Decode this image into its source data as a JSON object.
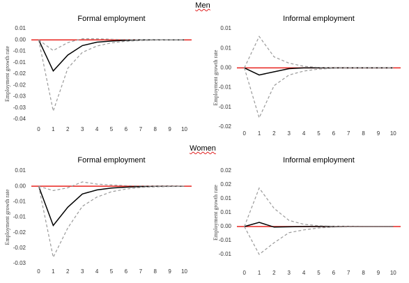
{
  "headings": [
    "Men",
    "Women"
  ],
  "chart_data": [
    {
      "type": "line",
      "title": "Formal employment",
      "y_label": "Employment growth rate",
      "categories": [
        "0",
        "1",
        "2",
        "3",
        "4",
        "5",
        "6",
        "7",
        "8",
        "9",
        "10"
      ],
      "ylim": [
        -0.035,
        0.005
      ],
      "yticks": [
        {
          "value": 0.005,
          "label": "0.01"
        },
        {
          "value": 0,
          "label": "0.00"
        },
        {
          "value": -0.005,
          "label": "-0.01"
        },
        {
          "value": -0.01,
          "label": "-0.01"
        },
        {
          "value": -0.015,
          "label": "-0.02"
        },
        {
          "value": -0.02,
          "label": "-0.02"
        },
        {
          "value": -0.025,
          "label": "-0.03"
        },
        {
          "value": -0.03,
          "label": "-0.03"
        },
        {
          "value": -0.035,
          "label": "-0.04"
        }
      ],
      "reference_line": {
        "value": 0,
        "color": "#e8231e"
      },
      "series": [
        {
          "color": "#000000",
          "style": "solid",
          "values": [
            0,
            -0.0137,
            -0.0067,
            -0.0025,
            -0.001,
            -0.0005,
            -0.0002,
            0,
            0,
            0,
            0
          ]
        },
        {
          "color": "#999999",
          "style": "dashed",
          "values": [
            0,
            -0.0047,
            -0.0012,
            0.0005,
            0.0005,
            0.0003,
            0.0001,
            0,
            0,
            0,
            0
          ]
        },
        {
          "color": "#999999",
          "style": "dashed",
          "values": [
            0,
            -0.0314,
            -0.0125,
            -0.0055,
            -0.0027,
            -0.0013,
            -0.0006,
            -0.0003,
            -0.0001,
            0,
            0
          ]
        }
      ]
    },
    {
      "type": "line",
      "title": "Informal employment",
      "y_label": "Employment growth rate",
      "categories": [
        "0",
        "1",
        "2",
        "3",
        "4",
        "5",
        "6",
        "7",
        "8",
        "9",
        "10"
      ],
      "ylim": [
        -0.015,
        0.01
      ],
      "yticks": [
        {
          "value": 0.01,
          "label": "0.01"
        },
        {
          "value": 0.005,
          "label": "0.01"
        },
        {
          "value": 0,
          "label": "0.00"
        },
        {
          "value": -0.005,
          "label": "-0.01"
        },
        {
          "value": -0.01,
          "label": "-0.01"
        },
        {
          "value": -0.015,
          "label": "-0.02"
        }
      ],
      "reference_line": {
        "value": 0,
        "color": "#e8231e"
      },
      "series": [
        {
          "color": "#000000",
          "style": "solid",
          "values": [
            0,
            -0.0018,
            -0.001,
            -0.0002,
            0,
            0,
            0,
            0,
            0,
            0,
            0
          ]
        },
        {
          "color": "#999999",
          "style": "dashed",
          "values": [
            0,
            0.008,
            0.0028,
            0.0012,
            0.0004,
            0.0001,
            0,
            0,
            0,
            0,
            0
          ]
        },
        {
          "color": "#999999",
          "style": "dashed",
          "values": [
            0,
            -0.0127,
            -0.0045,
            -0.0018,
            -0.0008,
            -0.0003,
            -0.0001,
            0,
            0,
            0,
            0
          ]
        }
      ]
    },
    {
      "type": "line",
      "title": "Formal employment",
      "y_label": "Employment growth rate",
      "categories": [
        "0",
        "1",
        "2",
        "3",
        "4",
        "5",
        "6",
        "7",
        "8",
        "9",
        "10"
      ],
      "ylim": [
        -0.025,
        0.005
      ],
      "yticks": [
        {
          "value": 0.005,
          "label": "0.01"
        },
        {
          "value": 0,
          "label": "0.00"
        },
        {
          "value": -0.005,
          "label": "-0.01"
        },
        {
          "value": -0.01,
          "label": "-0.01"
        },
        {
          "value": -0.015,
          "label": "-0.02"
        },
        {
          "value": -0.02,
          "label": "-0.02"
        },
        {
          "value": -0.025,
          "label": "-0.03"
        }
      ],
      "reference_line": {
        "value": 0,
        "color": "#e8231e"
      },
      "series": [
        {
          "color": "#000000",
          "style": "solid",
          "values": [
            0,
            -0.0127,
            -0.0068,
            -0.0025,
            -0.0012,
            -0.0006,
            -0.0003,
            -0.0001,
            0,
            0,
            0
          ]
        },
        {
          "color": "#999999",
          "style": "dashed",
          "values": [
            0,
            -0.0014,
            -0.0005,
            0.0014,
            0.0007,
            0.0004,
            0.0002,
            0.0001,
            0,
            0,
            0
          ]
        },
        {
          "color": "#999999",
          "style": "dashed",
          "values": [
            0,
            -0.023,
            -0.0135,
            -0.0065,
            -0.0035,
            -0.0018,
            -0.0009,
            -0.0004,
            -0.0002,
            -0.0001,
            0
          ]
        }
      ]
    },
    {
      "type": "line",
      "title": "Informal employment",
      "y_label": "Employment growth rate",
      "categories": [
        "0",
        "1",
        "2",
        "3",
        "4",
        "5",
        "6",
        "7",
        "8",
        "9",
        "10"
      ],
      "ylim": [
        -0.01,
        0.02
      ],
      "yticks": [
        {
          "value": 0.02,
          "label": "0.02"
        },
        {
          "value": 0.015,
          "label": "0.02"
        },
        {
          "value": 0.01,
          "label": "0.01"
        },
        {
          "value": 0.005,
          "label": "0.01"
        },
        {
          "value": 0,
          "label": "0.00"
        },
        {
          "value": -0.005,
          "label": "-0.01"
        },
        {
          "value": -0.01,
          "label": "-0.01"
        }
      ],
      "reference_line": {
        "value": 0,
        "color": "#e8231e"
      },
      "series": [
        {
          "color": "#000000",
          "style": "solid",
          "values": [
            0,
            0.0015,
            -0.0002,
            -0.0001,
            0,
            0,
            0,
            0,
            0,
            0,
            0
          ]
        },
        {
          "color": "#999999",
          "style": "dashed",
          "values": [
            0,
            0.0138,
            0.0065,
            0.0022,
            0.0008,
            0.0003,
            0.0001,
            0,
            0,
            0,
            0
          ]
        },
        {
          "color": "#999999",
          "style": "dashed",
          "values": [
            0,
            -0.01,
            -0.0058,
            -0.0022,
            -0.0012,
            -0.0005,
            -0.0002,
            -0.0001,
            0,
            0,
            0
          ]
        }
      ]
    }
  ]
}
